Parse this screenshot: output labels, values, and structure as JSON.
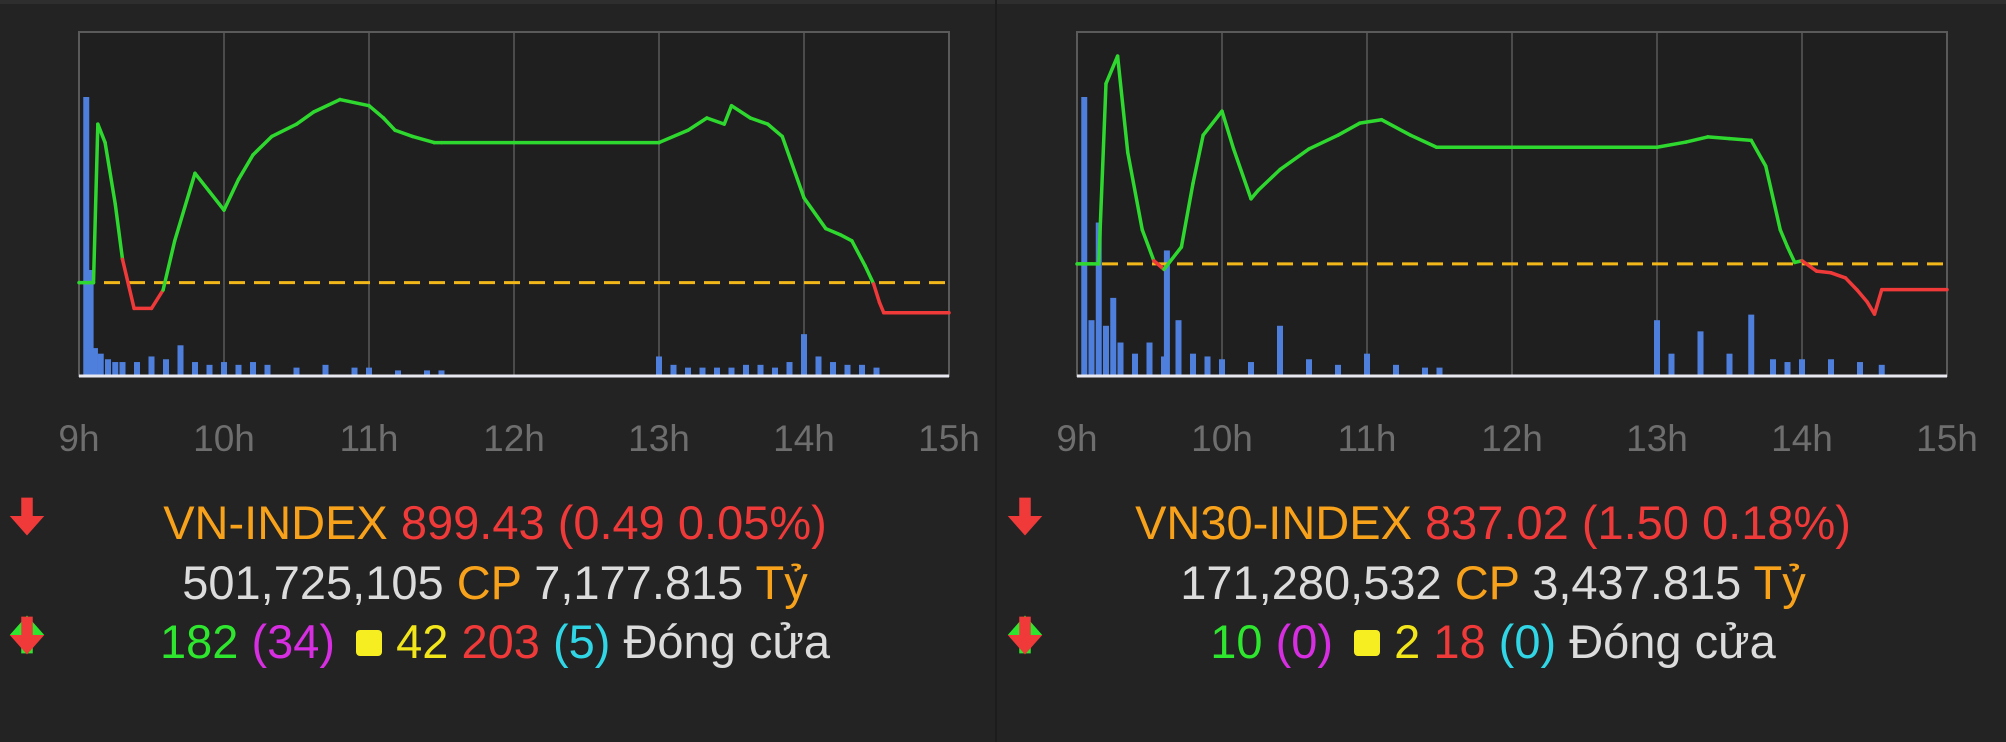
{
  "charts": [
    {
      "name": "VN-INDEX",
      "index_value": "899.43",
      "change_text": "(0.49 0.05%)",
      "volume": "501,725,105",
      "volume_unit": "CP",
      "turnover": "7,177.815",
      "turnover_unit": "Tỷ",
      "advancers": "182",
      "ceiling": "(34)",
      "unchanged": "42",
      "decliners": "203",
      "floor": "(5)",
      "status": "Đóng cửa"
    },
    {
      "name": "VN30-INDEX",
      "index_value": "837.02",
      "change_text": "(1.50 0.18%)",
      "volume": "171,280,532",
      "volume_unit": "CP",
      "turnover": "3,437.815",
      "turnover_unit": "Tỷ",
      "advancers": "10",
      "ceiling": "(0)",
      "unchanged": "2",
      "decliners": "18",
      "floor": "(0)",
      "status": "Đóng cửa"
    }
  ],
  "colors": {
    "up": "#2ed82e",
    "down": "#f03a3a",
    "reference": "#f2b81a",
    "volume": "#4f7fdc",
    "grid": "#5a5a5a",
    "label": "#f7a21a",
    "tick": "#6e6e6e"
  },
  "chart_data": [
    {
      "type": "line",
      "title": "VN-INDEX",
      "x_ticks": [
        "9h",
        "10h",
        "11h",
        "12h",
        "13h",
        "14h",
        "15h"
      ],
      "reference": 899.92,
      "ylim": [
        898.4,
        904.0
      ],
      "grid": true,
      "series": [
        {
          "x": [
            9.0,
            9.1,
            9.13,
            9.18,
            9.25,
            9.3,
            9.38,
            9.5,
            9.58,
            9.66,
            9.8,
            9.9,
            10.0,
            10.1,
            10.2,
            10.33,
            10.5,
            10.62,
            10.8,
            11.0,
            11.1,
            11.18,
            11.3,
            11.45,
            11.5,
            12.0,
            13.0,
            13.2,
            13.33,
            13.45,
            13.5,
            13.63,
            13.75,
            13.85,
            14.0,
            14.15,
            14.25,
            14.33,
            14.42,
            14.48,
            14.52,
            14.55,
            15.0
          ],
          "values": [
            899.92,
            899.92,
            902.5,
            902.2,
            901.2,
            900.3,
            899.5,
            899.5,
            899.8,
            900.6,
            901.7,
            901.4,
            901.1,
            901.6,
            902.0,
            902.3,
            902.5,
            902.7,
            902.9,
            902.8,
            902.6,
            902.4,
            902.3,
            902.2,
            902.2,
            902.2,
            902.2,
            902.4,
            902.6,
            902.5,
            902.8,
            902.6,
            902.5,
            902.3,
            901.3,
            900.8,
            900.7,
            900.6,
            900.2,
            899.9,
            899.6,
            899.43,
            899.43
          ]
        }
      ],
      "volume_series": {
        "x": [
          9.05,
          9.08,
          9.11,
          9.15,
          9.2,
          9.25,
          9.3,
          9.4,
          9.5,
          9.6,
          9.7,
          9.8,
          9.9,
          10.0,
          10.1,
          10.2,
          10.3,
          10.5,
          10.7,
          10.9,
          11.0,
          11.2,
          11.4,
          11.5,
          13.0,
          13.1,
          13.2,
          13.3,
          13.4,
          13.5,
          13.6,
          13.7,
          13.8,
          13.9,
          14.0,
          14.1,
          14.2,
          14.3,
          14.4,
          14.5
        ],
        "values": [
          100,
          38,
          10,
          8,
          6,
          5,
          5,
          5,
          7,
          6,
          11,
          5,
          4,
          5,
          4,
          5,
          4,
          3,
          4,
          3,
          3,
          2,
          2,
          2,
          7,
          4,
          3,
          3,
          3,
          3,
          4,
          4,
          3,
          5,
          15,
          7,
          5,
          4,
          4,
          3
        ],
        "ylim": [
          0,
          100
        ]
      }
    },
    {
      "type": "line",
      "title": "VN30-INDEX",
      "x_ticks": [
        "9h",
        "10h",
        "11h",
        "12h",
        "13h",
        "14h",
        "15h"
      ],
      "reference": 838.52,
      "ylim": [
        832.0,
        852.0
      ],
      "grid": true,
      "series": [
        {
          "x": [
            9.0,
            9.15,
            9.2,
            9.28,
            9.35,
            9.45,
            9.53,
            9.6,
            9.72,
            9.8,
            9.87,
            10.0,
            10.08,
            10.2,
            10.25,
            10.4,
            10.6,
            10.8,
            10.95,
            11.1,
            11.3,
            11.48,
            11.5,
            12.0,
            13.0,
            13.2,
            13.35,
            13.5,
            13.65,
            13.75,
            13.85,
            13.9,
            13.95,
            14.0,
            14.1,
            14.2,
            14.3,
            14.38,
            14.45,
            14.5,
            14.55,
            15.0
          ],
          "values": [
            838.52,
            838.52,
            849.0,
            850.6,
            845.0,
            840.5,
            838.7,
            838.2,
            839.5,
            843.2,
            846.0,
            847.4,
            845.2,
            842.3,
            842.8,
            844.0,
            845.2,
            846.0,
            846.7,
            846.9,
            846.0,
            845.3,
            845.3,
            845.3,
            845.3,
            845.6,
            845.9,
            845.8,
            845.7,
            844.2,
            840.5,
            839.5,
            838.6,
            838.7,
            838.1,
            838.0,
            837.7,
            837.0,
            836.3,
            835.6,
            837.02,
            837.02
          ]
        }
      ],
      "volume_series": {
        "x": [
          9.05,
          9.1,
          9.15,
          9.2,
          9.25,
          9.3,
          9.4,
          9.5,
          9.6,
          9.62,
          9.7,
          9.8,
          9.9,
          10.0,
          10.2,
          10.4,
          10.6,
          10.8,
          11.0,
          11.2,
          11.4,
          11.5,
          13.0,
          13.1,
          13.3,
          13.5,
          13.65,
          13.8,
          13.9,
          14.0,
          14.2,
          14.4,
          14.55
        ],
        "values": [
          100,
          20,
          55,
          18,
          28,
          12,
          8,
          12,
          7,
          45,
          20,
          8,
          7,
          6,
          5,
          18,
          6,
          4,
          8,
          4,
          3,
          3,
          20,
          8,
          16,
          8,
          22,
          6,
          5,
          6,
          6,
          5,
          4
        ],
        "ylim": [
          0,
          100
        ]
      }
    }
  ]
}
